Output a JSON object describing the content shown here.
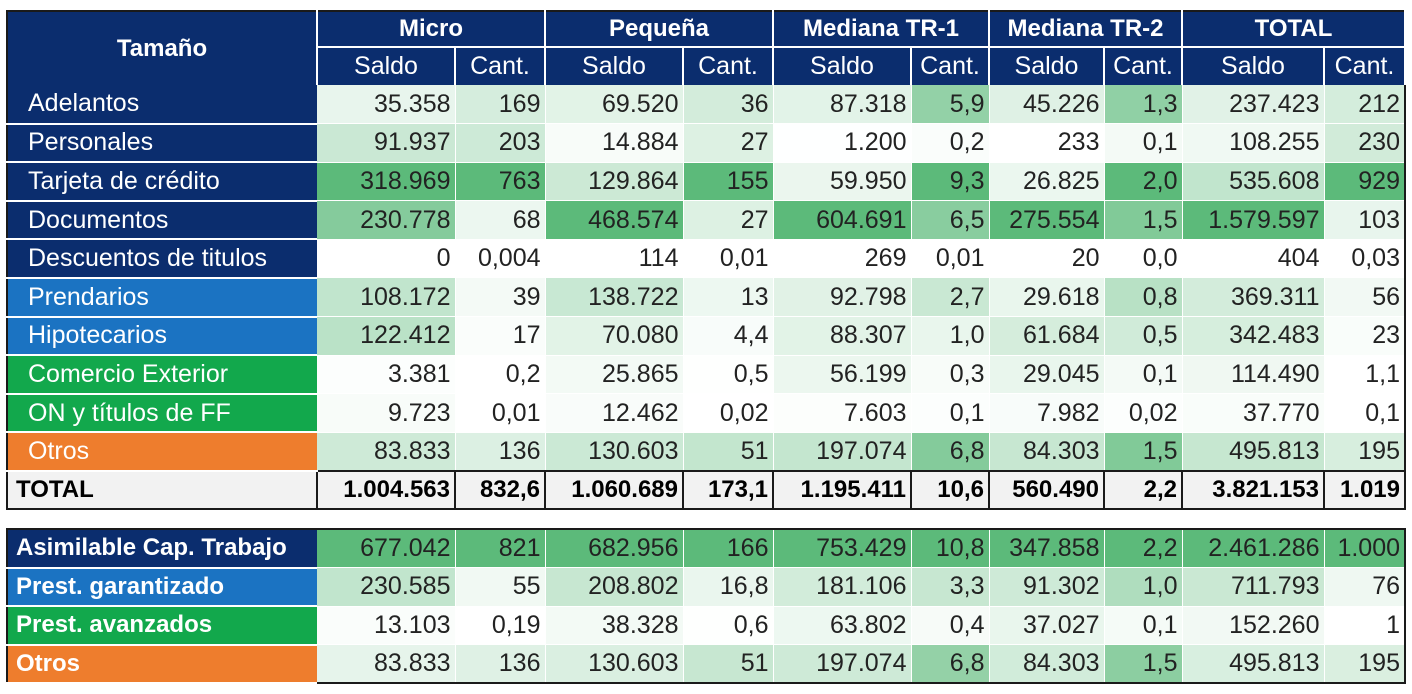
{
  "header": {
    "corner_label": "Tamaño",
    "groups": [
      "Micro",
      "Pequeña",
      "Mediana TR-1",
      "Mediana TR-2",
      "TOTAL"
    ],
    "subheaders": [
      "Saldo",
      "Cant.",
      "Saldo",
      "Cant.",
      "Saldo",
      "Cant.",
      "Saldo",
      "Cant.",
      "Saldo",
      "Cant."
    ]
  },
  "rows": [
    {
      "label": "Adelantos",
      "color": "#0b2d6e",
      "values": [
        "35.358",
        "169",
        "69.520",
        "36",
        "87.318",
        "5,9",
        "45.226",
        "1,3",
        "237.423",
        "212"
      ]
    },
    {
      "label": "Personales",
      "color": "#0b2d6e",
      "values": [
        "91.937",
        "203",
        "14.884",
        "27",
        "1.200",
        "0,2",
        "233",
        "0,1",
        "108.255",
        "230"
      ]
    },
    {
      "label": "Tarjeta de crédito",
      "color": "#0b2d6e",
      "values": [
        "318.969",
        "763",
        "129.864",
        "155",
        "59.950",
        "9,3",
        "26.825",
        "2,0",
        "535.608",
        "929"
      ]
    },
    {
      "label": "Documentos",
      "color": "#0b2d6e",
      "values": [
        "230.778",
        "68",
        "468.574",
        "27",
        "604.691",
        "6,5",
        "275.554",
        "1,5",
        "1.579.597",
        "103"
      ]
    },
    {
      "label": "Descuentos de titulos",
      "color": "#0b2d6e",
      "values": [
        "0",
        "0,004",
        "114",
        "0,01",
        "269",
        "0,01",
        "20",
        "0,0",
        "404",
        "0,03"
      ]
    },
    {
      "label": "Prendarios",
      "color": "#1b73c2",
      "values": [
        "108.172",
        "39",
        "138.722",
        "13",
        "92.798",
        "2,7",
        "29.618",
        "0,8",
        "369.311",
        "56"
      ]
    },
    {
      "label": "Hipotecarios",
      "color": "#1b73c2",
      "values": [
        "122.412",
        "17",
        "70.080",
        "4,4",
        "88.307",
        "1,0",
        "61.684",
        "0,5",
        "342.483",
        "23"
      ]
    },
    {
      "label": "Comercio Exterior",
      "color": "#12a84c",
      "values": [
        "3.381",
        "0,2",
        "25.865",
        "0,5",
        "56.199",
        "0,3",
        "29.045",
        "0,1",
        "114.490",
        "1,1"
      ]
    },
    {
      "label": "ON y títulos de FF",
      "color": "#12a84c",
      "values": [
        "9.723",
        "0,01",
        "12.462",
        "0,02",
        "7.603",
        "0,1",
        "7.982",
        "0,02",
        "37.770",
        "0,1"
      ]
    },
    {
      "label": "Otros",
      "color": "#ee7d2d",
      "values": [
        "83.833",
        "136",
        "130.603",
        "51",
        "197.074",
        "6,8",
        "84.303",
        "1,5",
        "495.813",
        "195"
      ]
    }
  ],
  "total_row": {
    "label": "TOTAL",
    "values": [
      "1.004.563",
      "832,6",
      "1.060.689",
      "173,1",
      "1.195.411",
      "10,6",
      "560.490",
      "2,2",
      "3.821.153",
      "1.019"
    ]
  },
  "summary_rows": [
    {
      "label": "Asimilable Cap. Trabajo",
      "color": "#0b2d6e",
      "values": [
        "677.042",
        "821",
        "682.956",
        "166",
        "753.429",
        "10,8",
        "347.858",
        "2,2",
        "2.461.286",
        "1.000"
      ]
    },
    {
      "label": "Prest. garantizado",
      "color": "#1b73c2",
      "values": [
        "230.585",
        "55",
        "208.802",
        "16,8",
        "181.106",
        "3,3",
        "91.302",
        "1,0",
        "711.793",
        "76"
      ]
    },
    {
      "label": "Prest. avanzados",
      "color": "#12a84c",
      "values": [
        "13.103",
        "0,19",
        "38.328",
        "0,6",
        "63.802",
        "0,4",
        "37.027",
        "0,1",
        "152.260",
        "1"
      ]
    },
    {
      "label": "Otros",
      "color": "#ee7d2d",
      "values": [
        "83.833",
        "136",
        "130.603",
        "51",
        "197.074",
        "6,8",
        "84.303",
        "1,5",
        "495.813",
        "195"
      ]
    }
  ],
  "heat_colors": {
    "low": "#ffffff",
    "high": "#5cba7a"
  }
}
